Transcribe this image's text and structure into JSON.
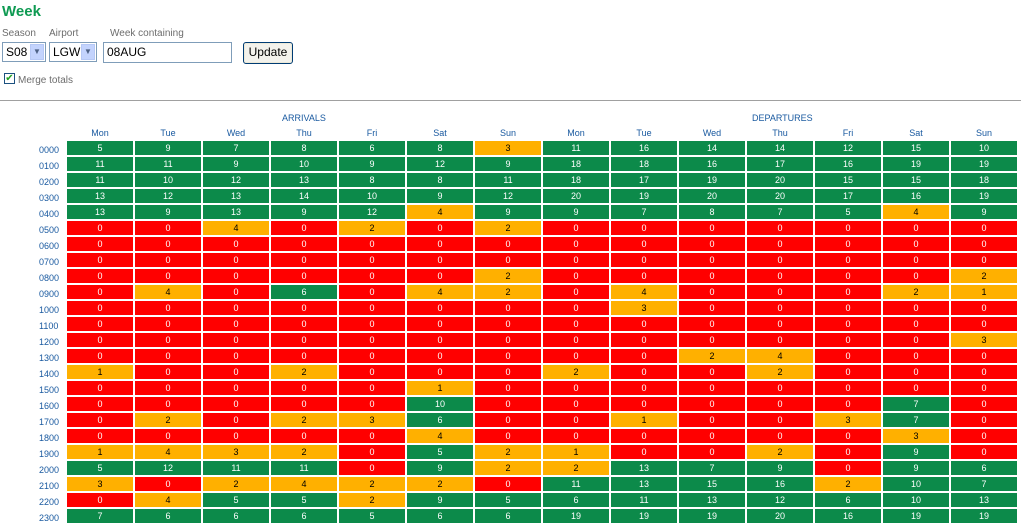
{
  "title": "Week",
  "season": {
    "label": "Season",
    "value": "S08"
  },
  "airport": {
    "label": "Airport",
    "value": "LGW"
  },
  "week": {
    "label": "Week containing",
    "value": "08AUG"
  },
  "update_label": "Update",
  "merge": {
    "label": "Merge totals",
    "checked": true
  },
  "groups": {
    "arrivals": "ARRIVALS",
    "departures": "DEPARTURES"
  },
  "days": [
    "Mon",
    "Tue",
    "Wed",
    "Thu",
    "Fri",
    "Sat",
    "Sun",
    "Mon",
    "Tue",
    "Wed",
    "Thu",
    "Fri",
    "Sat",
    "Sun"
  ],
  "colors": {
    "green": "#0c8a4a",
    "red": "#ff0000",
    "amber": "#ffb000"
  },
  "rows": [
    {
      "hour": "0000",
      "v": [
        5,
        9,
        7,
        8,
        6,
        8,
        3,
        11,
        16,
        14,
        14,
        12,
        15,
        10
      ]
    },
    {
      "hour": "0100",
      "v": [
        11,
        11,
        9,
        10,
        9,
        12,
        9,
        18,
        18,
        16,
        17,
        16,
        19,
        19
      ]
    },
    {
      "hour": "0200",
      "v": [
        11,
        10,
        12,
        13,
        8,
        8,
        11,
        18,
        17,
        19,
        20,
        15,
        15,
        18
      ]
    },
    {
      "hour": "0300",
      "v": [
        13,
        12,
        13,
        14,
        10,
        9,
        12,
        20,
        19,
        20,
        20,
        17,
        16,
        19
      ]
    },
    {
      "hour": "0400",
      "v": [
        13,
        9,
        13,
        9,
        12,
        4,
        9,
        9,
        7,
        8,
        7,
        5,
        4,
        9
      ]
    },
    {
      "hour": "0500",
      "v": [
        0,
        0,
        4,
        0,
        2,
        0,
        2,
        0,
        0,
        0,
        0,
        0,
        0,
        0
      ]
    },
    {
      "hour": "0600",
      "v": [
        0,
        0,
        0,
        0,
        0,
        0,
        0,
        0,
        0,
        0,
        0,
        0,
        0,
        0
      ]
    },
    {
      "hour": "0700",
      "v": [
        0,
        0,
        0,
        0,
        0,
        0,
        0,
        0,
        0,
        0,
        0,
        0,
        0,
        0
      ]
    },
    {
      "hour": "0800",
      "v": [
        0,
        0,
        0,
        0,
        0,
        0,
        2,
        0,
        0,
        0,
        0,
        0,
        0,
        2
      ]
    },
    {
      "hour": "0900",
      "v": [
        0,
        4,
        0,
        6,
        0,
        4,
        2,
        0,
        4,
        0,
        0,
        0,
        2,
        1
      ]
    },
    {
      "hour": "1000",
      "v": [
        0,
        0,
        0,
        0,
        0,
        0,
        0,
        0,
        3,
        0,
        0,
        0,
        0,
        0
      ]
    },
    {
      "hour": "1100",
      "v": [
        0,
        0,
        0,
        0,
        0,
        0,
        0,
        0,
        0,
        0,
        0,
        0,
        0,
        0
      ]
    },
    {
      "hour": "1200",
      "v": [
        0,
        0,
        0,
        0,
        0,
        0,
        0,
        0,
        0,
        0,
        0,
        0,
        0,
        3
      ]
    },
    {
      "hour": "1300",
      "v": [
        0,
        0,
        0,
        0,
        0,
        0,
        0,
        0,
        0,
        2,
        4,
        0,
        0,
        0
      ]
    },
    {
      "hour": "1400",
      "v": [
        1,
        0,
        0,
        2,
        0,
        0,
        0,
        2,
        0,
        0,
        2,
        0,
        0,
        0
      ]
    },
    {
      "hour": "1500",
      "v": [
        0,
        0,
        0,
        0,
        0,
        1,
        0,
        0,
        0,
        0,
        0,
        0,
        0,
        0
      ]
    },
    {
      "hour": "1600",
      "v": [
        0,
        0,
        0,
        0,
        0,
        10,
        0,
        0,
        0,
        0,
        0,
        0,
        7,
        0
      ]
    },
    {
      "hour": "1700",
      "v": [
        0,
        2,
        0,
        2,
        3,
        6,
        0,
        0,
        1,
        0,
        0,
        3,
        7,
        0
      ]
    },
    {
      "hour": "1800",
      "v": [
        0,
        0,
        0,
        0,
        0,
        4,
        0,
        0,
        0,
        0,
        0,
        0,
        3,
        0
      ]
    },
    {
      "hour": "1900",
      "v": [
        1,
        4,
        3,
        2,
        0,
        5,
        2,
        1,
        0,
        0,
        2,
        0,
        9,
        0
      ]
    },
    {
      "hour": "2000",
      "v": [
        5,
        12,
        11,
        11,
        0,
        9,
        2,
        2,
        13,
        7,
        9,
        0,
        9,
        6
      ]
    },
    {
      "hour": "2100",
      "v": [
        3,
        0,
        2,
        4,
        2,
        2,
        0,
        11,
        13,
        15,
        16,
        2,
        10,
        7
      ]
    },
    {
      "hour": "2200",
      "v": [
        0,
        4,
        5,
        5,
        2,
        9,
        5,
        6,
        11,
        13,
        12,
        6,
        10,
        13
      ]
    },
    {
      "hour": "2300",
      "v": [
        7,
        6,
        6,
        6,
        5,
        6,
        6,
        19,
        19,
        19,
        20,
        16,
        19,
        19
      ]
    }
  ],
  "amber_cells": [
    [
      0,
      6
    ],
    [
      4,
      5
    ],
    [
      4,
      12
    ],
    [
      5,
      2
    ],
    [
      5,
      4
    ],
    [
      5,
      6
    ],
    [
      8,
      6
    ],
    [
      8,
      13
    ],
    [
      9,
      1
    ],
    [
      9,
      5
    ],
    [
      9,
      6
    ],
    [
      9,
      8
    ],
    [
      9,
      12
    ],
    [
      9,
      13
    ],
    [
      10,
      8
    ],
    [
      12,
      13
    ],
    [
      13,
      9
    ],
    [
      13,
      10
    ],
    [
      14,
      0
    ],
    [
      14,
      3
    ],
    [
      14,
      7
    ],
    [
      14,
      10
    ],
    [
      15,
      5
    ],
    [
      17,
      1
    ],
    [
      17,
      3
    ],
    [
      17,
      4
    ],
    [
      17,
      8
    ],
    [
      17,
      11
    ],
    [
      18,
      5
    ],
    [
      18,
      12
    ],
    [
      19,
      0
    ],
    [
      19,
      1
    ],
    [
      19,
      2
    ],
    [
      19,
      3
    ],
    [
      19,
      6
    ],
    [
      19,
      7
    ],
    [
      19,
      10
    ],
    [
      20,
      6
    ],
    [
      20,
      7
    ],
    [
      21,
      0
    ],
    [
      21,
      2
    ],
    [
      21,
      3
    ],
    [
      21,
      4
    ],
    [
      21,
      5
    ],
    [
      21,
      11
    ],
    [
      22,
      1
    ],
    [
      22,
      4
    ]
  ]
}
